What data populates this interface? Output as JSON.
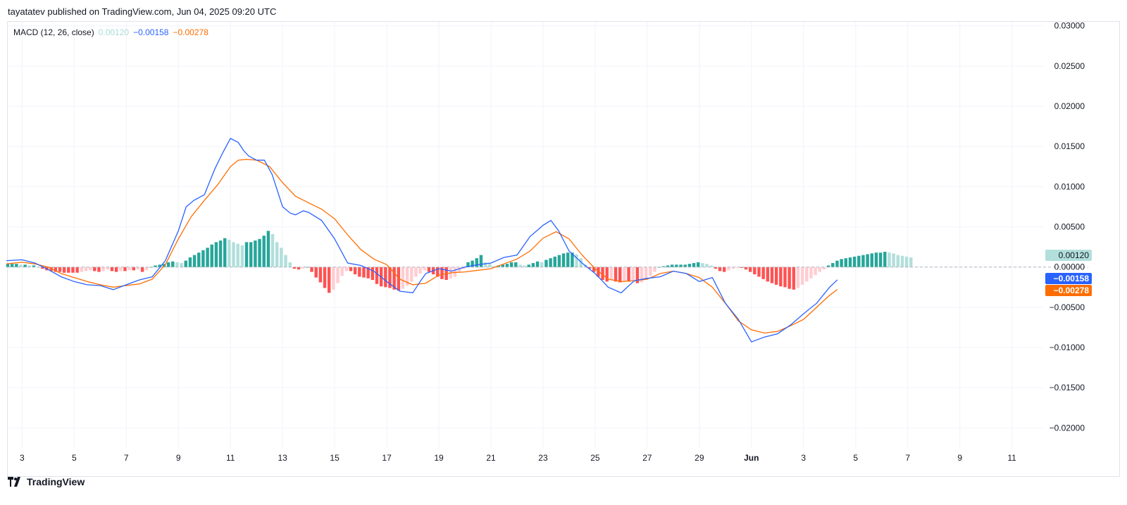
{
  "header": {
    "published_text": "tayatatev published on TradingView.com, Jun 04, 2025 09:20 UTC"
  },
  "legend": {
    "indicator": "MACD (12, 26, close)",
    "histogram_value": "0.00120",
    "macd_value": "−0.00158",
    "signal_value": "−0.00278"
  },
  "footer": {
    "brand": "TradingView",
    "logo_icon": "tradingview-logo-icon"
  },
  "colors": {
    "macd_line": "#2962ff",
    "signal_line": "#ff6d00",
    "hist_pos_strong": "#26a69a",
    "hist_pos_weak": "#b2dfdb",
    "hist_neg_strong": "#ff5252",
    "hist_neg_weak": "#ffcdd2",
    "grid": "#f0f3fa",
    "zero_line": "#b2b5be"
  },
  "chart_data": {
    "type": "line",
    "indicator": "MACD (12, 26, close)",
    "y_ticks": [
      "0.03000",
      "0.02500",
      "0.02000",
      "0.01500",
      "0.01000",
      "0.00500",
      "0.00000",
      "−0.00500",
      "−0.01000",
      "−0.01500",
      "−0.02000"
    ],
    "y_tick_values": [
      0.03,
      0.025,
      0.02,
      0.015,
      0.01,
      0.005,
      0,
      -0.005,
      -0.01,
      -0.015,
      -0.02
    ],
    "ylim": [
      -0.0225,
      0.0305
    ],
    "x_ticks": [
      "3",
      "5",
      "7",
      "9",
      "11",
      "13",
      "15",
      "17",
      "19",
      "21",
      "23",
      "25",
      "27",
      "29",
      "Jun",
      "3",
      "5",
      "7",
      "9",
      "11"
    ],
    "x_tick_positions": [
      3,
      5,
      7,
      9,
      11,
      13,
      15,
      17,
      19,
      21,
      23,
      25,
      27,
      29,
      31,
      33,
      35,
      37,
      39,
      41
    ],
    "x_unit": "day index (3 = May 3, 31 = Jun 1, 33 = Jun 3)",
    "xlim": [
      2.45,
      42.2
    ],
    "grid": true,
    "price_labels": [
      {
        "text": "0.00120",
        "value": 0.0012,
        "series": "histogram"
      },
      {
        "text": "−0.00158",
        "value": -0.00158,
        "series": "macd"
      },
      {
        "text": "−0.00278",
        "value": -0.00278,
        "series": "signal"
      }
    ],
    "series": [
      {
        "key": "macd",
        "x": [
          2.4,
          3,
          3.5,
          4,
          4.5,
          5,
          5.5,
          6,
          6.5,
          7,
          7.5,
          8,
          8.5,
          9,
          9.3,
          9.6,
          10,
          10.4,
          10.7,
          11,
          11.3,
          11.5,
          11.7,
          12,
          12.3,
          12.6,
          13,
          13.3,
          13.5,
          13.8,
          14,
          14.5,
          15,
          15.5,
          16,
          16.5,
          17,
          17.5,
          18,
          18.3,
          18.5,
          19,
          19.5,
          20,
          20.5,
          21,
          21.5,
          22,
          22.5,
          23,
          23.3,
          23.6,
          24,
          24.5,
          25,
          25.3,
          25.5,
          26,
          26.5,
          27,
          27.5,
          28,
          28.5,
          29,
          29.5,
          30,
          30.5,
          31,
          31.5,
          32,
          32.5,
          33,
          33.5,
          34,
          34.3
        ],
        "y": [
          0.0008,
          0.0009,
          0.0005,
          -0.0003,
          -0.0012,
          -0.0018,
          -0.0022,
          -0.0023,
          -0.0028,
          -0.0022,
          -0.0016,
          -0.0012,
          0.0008,
          0.0045,
          0.0075,
          0.0083,
          0.009,
          0.0122,
          0.0142,
          0.016,
          0.0155,
          0.0145,
          0.0138,
          0.0133,
          0.0133,
          0.0115,
          0.0075,
          0.0067,
          0.0065,
          0.007,
          0.0068,
          0.0058,
          0.0035,
          0.0005,
          0.0002,
          -0.0005,
          -0.0018,
          -0.003,
          -0.0032,
          -0.0017,
          -0.0008,
          -0.0002,
          -0.0005,
          0,
          0.0003,
          0.0005,
          0.0012,
          0.0015,
          0.0038,
          0.0052,
          0.0058,
          0.0045,
          0.002,
          0.0005,
          -0.0008,
          -0.0018,
          -0.0025,
          -0.0032,
          -0.0017,
          -0.0014,
          -0.0012,
          -0.0005,
          -0.0008,
          -0.0018,
          -0.0013,
          -0.0045,
          -0.0065,
          -0.0093,
          -0.0087,
          -0.0083,
          -0.0072,
          -0.0058,
          -0.0045,
          -0.0025,
          -0.00158
        ]
      },
      {
        "key": "signal",
        "x": [
          2.4,
          3,
          3.5,
          4,
          4.5,
          5,
          5.5,
          6,
          6.5,
          7,
          7.5,
          8,
          8.5,
          9,
          9.5,
          10,
          10.5,
          11,
          11.3,
          11.6,
          12,
          12.5,
          13,
          13.5,
          14,
          14.5,
          15,
          15.5,
          16,
          16.5,
          17,
          17.5,
          18,
          18.5,
          19,
          19.5,
          20,
          20.5,
          21,
          21.5,
          22,
          22.5,
          23,
          23.5,
          24,
          24.5,
          25,
          25.5,
          26,
          26.5,
          27,
          27.5,
          28,
          28.5,
          29,
          29.5,
          30,
          30.5,
          31,
          31.5,
          32,
          32.5,
          33,
          33.5,
          34,
          34.3
        ],
        "y": [
          0.0004,
          0.0006,
          0.0004,
          0,
          -0.0008,
          -0.0013,
          -0.0018,
          -0.0022,
          -0.0025,
          -0.0023,
          -0.0021,
          -0.0015,
          0.0003,
          0.0035,
          0.0063,
          0.0083,
          0.0102,
          0.0125,
          0.0133,
          0.0134,
          0.0133,
          0.0125,
          0.0105,
          0.0088,
          0.008,
          0.0072,
          0.006,
          0.004,
          0.0022,
          0.001,
          0.0003,
          -0.0015,
          -0.0022,
          -0.002,
          -0.001,
          -0.0007,
          -0.0006,
          -0.0004,
          -0.0002,
          0.0004,
          0.001,
          0.002,
          0.0036,
          0.0044,
          0.0035,
          0.0015,
          -0.0002,
          -0.0015,
          -0.0018,
          -0.0017,
          -0.0015,
          -0.0008,
          -0.0005,
          -0.0008,
          -0.0013,
          -0.0025,
          -0.0045,
          -0.0067,
          -0.0078,
          -0.0082,
          -0.008,
          -0.0073,
          -0.0065,
          -0.005,
          -0.0035,
          -0.00278
        ]
      },
      {
        "key": "histogram",
        "x_start": 2.45,
        "x_step": 0.1667,
        "values": [
          0.0004,
          0.0004,
          0.0004,
          0.0003,
          0.0003,
          0.0002,
          0.0002,
          0,
          -0.0002,
          -0.0004,
          -0.0005,
          -0.0006,
          -0.0006,
          -0.0007,
          -0.0007,
          -0.0007,
          -0.0007,
          -0.0006,
          -0.0005,
          -0.0004,
          -0.0005,
          -0.0006,
          -0.0005,
          -0.0003,
          -0.0005,
          -0.0006,
          -0.0005,
          -0.0005,
          -0.0004,
          -0.0004,
          -0.0003,
          -0.0006,
          -0.0004,
          0,
          0.0002,
          0.0003,
          0.0004,
          0.0006,
          0.0007,
          0.0006,
          0.0005,
          0.0008,
          0.0012,
          0.0015,
          0.0018,
          0.0021,
          0.0024,
          0.0028,
          0.0031,
          0.0033,
          0.0036,
          0.0034,
          0.0031,
          0.0029,
          0.0027,
          0.0031,
          0.0031,
          0.0033,
          0.0035,
          0.0039,
          0.0045,
          0.0041,
          0.0031,
          0.0024,
          0.0015,
          0.0006,
          -0.0002,
          -0.0003,
          -0.0002,
          0,
          -0.0006,
          -0.0013,
          -0.0019,
          -0.0026,
          -0.0032,
          -0.0028,
          -0.002,
          -0.0011,
          -0.0005,
          -0.0005,
          -0.0009,
          -0.0012,
          -0.0013,
          -0.0014,
          -0.0016,
          -0.0021,
          -0.0024,
          -0.0025,
          -0.0026,
          -0.0028,
          -0.0029,
          -0.0027,
          -0.0023,
          -0.0018,
          -0.0012,
          -0.0008,
          -0.0004,
          -0.0006,
          -0.0009,
          -0.0012,
          -0.0015,
          -0.0016,
          -0.0014,
          -0.0012,
          -0.0006,
          -0.0002,
          0.0006,
          0.0008,
          0.0011,
          0.0015,
          0.0006,
          0.0004,
          0.0001,
          0.0002,
          0.0003,
          0.0004,
          0.0006,
          0.0006,
          0.0003,
          0.0002,
          0.0003,
          0.0005,
          0.0007,
          0.0006,
          0.0009,
          0.0011,
          0.0013,
          0.0015,
          0.0017,
          0.0018,
          0.0018,
          0.0016,
          0.0011,
          0.0003,
          -0.0002,
          -0.0006,
          -0.0012,
          -0.0016,
          -0.0018,
          -0.0016,
          -0.0018,
          -0.0019,
          -0.0018,
          -0.0018,
          -0.0017,
          -0.002,
          -0.0019,
          -0.0016,
          -0.0011,
          -0.0006,
          0,
          0.0001,
          0.0002,
          0.0003,
          0.0003,
          0.0003,
          0.0003,
          0.0004,
          0.0005,
          0.0006,
          0.0005,
          0.0004,
          0.0002,
          -0.0002,
          -0.0005,
          -0.0006,
          -0.0004,
          -0.0002,
          -0.0001,
          -0.0001,
          -0.0003,
          -0.0006,
          -0.0009,
          -0.0012,
          -0.0015,
          -0.0018,
          -0.002,
          -0.0022,
          -0.0024,
          -0.0025,
          -0.0027,
          -0.0028,
          -0.0026,
          -0.0022,
          -0.0018,
          -0.0014,
          -0.001,
          -0.0006,
          -0.0003,
          0.0002,
          0.0005,
          0.0008,
          0.001,
          0.0011,
          0.0012,
          0.0013,
          0.0014,
          0.0015,
          0.0016,
          0.0017,
          0.0018,
          0.0018,
          0.0019,
          0.0018,
          0.0017,
          0.0015,
          0.0014,
          0.0013,
          0.0012
        ]
      }
    ]
  }
}
